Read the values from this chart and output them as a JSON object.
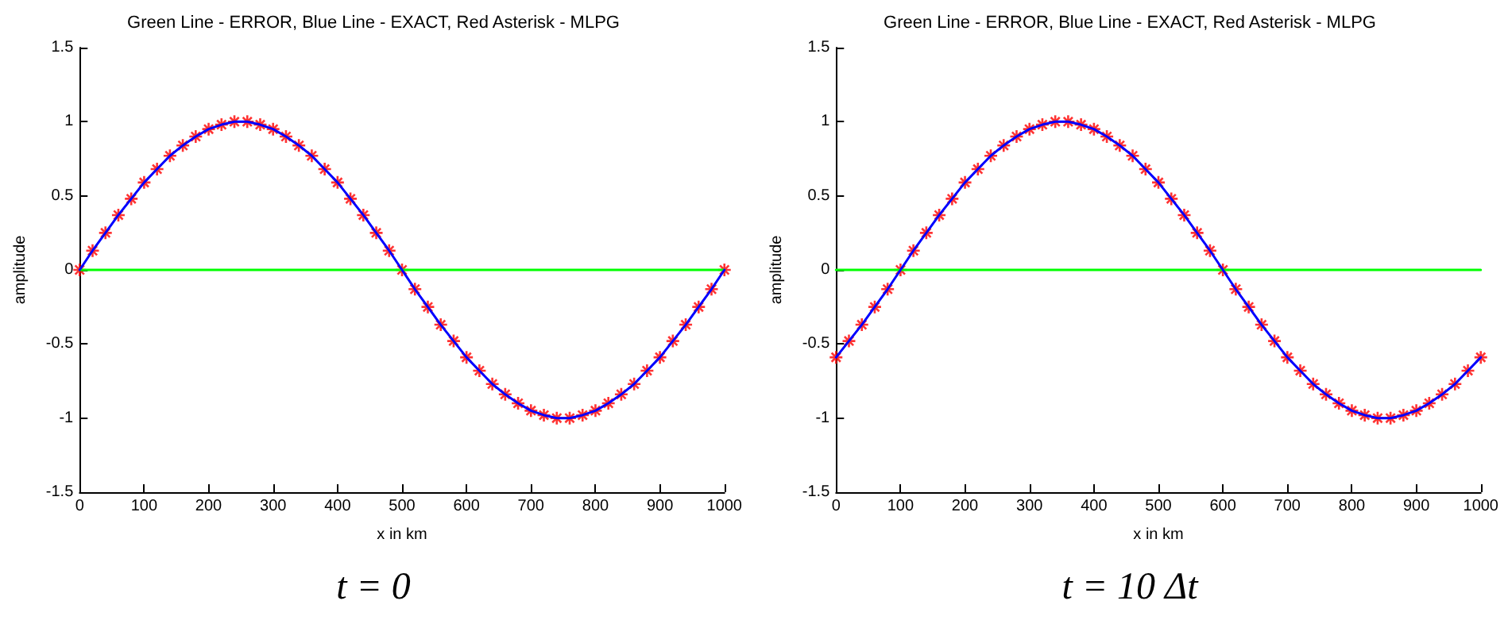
{
  "chart_data": [
    {
      "type": "line",
      "title": "Green Line - ERROR, Blue Line - EXACT, Red Asterisk - MLPG",
      "xlabel": "x in km",
      "ylabel": "amplitude",
      "annotations": [
        "t = 0"
      ],
      "xlim": [
        0,
        1000
      ],
      "xticks": [
        0,
        100,
        200,
        300,
        400,
        500,
        600,
        700,
        800,
        900,
        1000
      ],
      "ylim": [
        -1.5,
        1.5
      ],
      "yticks": [
        -1.5,
        -1,
        -0.5,
        0,
        0.5,
        1,
        1.5
      ],
      "grid": false,
      "x": [
        0,
        20,
        40,
        60,
        80,
        100,
        120,
        140,
        160,
        180,
        200,
        220,
        240,
        260,
        280,
        300,
        320,
        340,
        360,
        380,
        400,
        420,
        440,
        460,
        480,
        500,
        520,
        540,
        560,
        580,
        600,
        620,
        640,
        660,
        680,
        700,
        720,
        740,
        760,
        780,
        800,
        820,
        840,
        860,
        880,
        900,
        920,
        940,
        960,
        980,
        1000
      ],
      "series": [
        {
          "color": "#00ff00",
          "marker": "none",
          "values": [
            0,
            0,
            0,
            0,
            0,
            0,
            0,
            0,
            0,
            0,
            0,
            0,
            0,
            0,
            0,
            0,
            0,
            0,
            0,
            0,
            0,
            0,
            0,
            0,
            0,
            0,
            0,
            0,
            0,
            0,
            0,
            0,
            0,
            0,
            0,
            0,
            0,
            0,
            0,
            0,
            0,
            0,
            0,
            0,
            0,
            0,
            0,
            0,
            0,
            0,
            0
          ]
        },
        {
          "color": "#0000ff",
          "marker": "none",
          "values": [
            0,
            0.13,
            0.25,
            0.37,
            0.48,
            0.59,
            0.68,
            0.77,
            0.84,
            0.9,
            0.95,
            0.98,
            1,
            1,
            0.98,
            0.95,
            0.9,
            0.84,
            0.77,
            0.68,
            0.59,
            0.48,
            0.37,
            0.25,
            0.13,
            0,
            -0.13,
            -0.25,
            -0.37,
            -0.48,
            -0.59,
            -0.68,
            -0.77,
            -0.84,
            -0.9,
            -0.95,
            -0.98,
            -1,
            -1,
            -0.98,
            -0.95,
            -0.9,
            -0.84,
            -0.77,
            -0.68,
            -0.59,
            -0.48,
            -0.37,
            -0.25,
            -0.13,
            0
          ]
        },
        {
          "type": "scatter",
          "color": "#ff0000",
          "marker": "cross",
          "values": [
            0,
            0.13,
            0.25,
            0.37,
            0.48,
            0.59,
            0.68,
            0.77,
            0.84,
            0.9,
            0.95,
            0.98,
            1,
            1,
            0.98,
            0.95,
            0.9,
            0.84,
            0.77,
            0.68,
            0.59,
            0.48,
            0.37,
            0.25,
            0.13,
            0,
            -0.13,
            -0.25,
            -0.37,
            -0.48,
            -0.59,
            -0.68,
            -0.77,
            -0.84,
            -0.9,
            -0.95,
            -0.98,
            -1,
            -1,
            -0.98,
            -0.95,
            -0.9,
            -0.84,
            -0.77,
            -0.68,
            -0.59,
            -0.48,
            -0.37,
            -0.25,
            -0.13,
            0
          ]
        }
      ]
    },
    {
      "type": "line",
      "title": "Green Line - ERROR, Blue Line - EXACT, Red Asterisk - MLPG",
      "xlabel": "x in km",
      "ylabel": "amplitude",
      "annotations": [
        "t = 10 Δt"
      ],
      "xlim": [
        0,
        1000
      ],
      "xticks": [
        0,
        100,
        200,
        300,
        400,
        500,
        600,
        700,
        800,
        900,
        1000
      ],
      "ylim": [
        -1.5,
        1.5
      ],
      "yticks": [
        -1.5,
        -1,
        -0.5,
        0,
        0.5,
        1,
        1.5
      ],
      "grid": false,
      "x": [
        0,
        20,
        40,
        60,
        80,
        100,
        120,
        140,
        160,
        180,
        200,
        220,
        240,
        260,
        280,
        300,
        320,
        340,
        360,
        380,
        400,
        420,
        440,
        460,
        480,
        500,
        520,
        540,
        560,
        580,
        600,
        620,
        640,
        660,
        680,
        700,
        720,
        740,
        760,
        780,
        800,
        820,
        840,
        860,
        880,
        900,
        920,
        940,
        960,
        980,
        1000
      ],
      "series": [
        {
          "color": "#00ff00",
          "marker": "none",
          "values": [
            0,
            0,
            0,
            0,
            0,
            0,
            0,
            0,
            0,
            0,
            0,
            0,
            0,
            0,
            0,
            0,
            0,
            0,
            0,
            0,
            0,
            0,
            0,
            0,
            0,
            0,
            0,
            0,
            0,
            0,
            0,
            0,
            0,
            0,
            0,
            0,
            0,
            0,
            0,
            0,
            0,
            0,
            0,
            0,
            0,
            0,
            0,
            0,
            0,
            0,
            0
          ]
        },
        {
          "color": "#0000ff",
          "marker": "none",
          "values": [
            -0.59,
            -0.48,
            -0.37,
            -0.25,
            -0.13,
            0,
            0.13,
            0.25,
            0.37,
            0.48,
            0.59,
            0.68,
            0.77,
            0.84,
            0.9,
            0.95,
            0.98,
            1,
            1,
            0.98,
            0.95,
            0.9,
            0.84,
            0.77,
            0.68,
            0.59,
            0.48,
            0.37,
            0.25,
            0.13,
            0,
            -0.13,
            -0.25,
            -0.37,
            -0.48,
            -0.59,
            -0.68,
            -0.77,
            -0.84,
            -0.9,
            -0.95,
            -0.98,
            -1,
            -1,
            -0.98,
            -0.95,
            -0.9,
            -0.84,
            -0.77,
            -0.68,
            -0.59
          ]
        },
        {
          "type": "scatter",
          "color": "#ff0000",
          "marker": "cross",
          "values": [
            -0.59,
            -0.48,
            -0.37,
            -0.25,
            -0.13,
            0,
            0.13,
            0.25,
            0.37,
            0.48,
            0.59,
            0.68,
            0.77,
            0.84,
            0.9,
            0.95,
            0.98,
            1,
            1,
            0.98,
            0.95,
            0.9,
            0.84,
            0.77,
            0.68,
            0.59,
            0.48,
            0.37,
            0.25,
            0.13,
            0,
            -0.13,
            -0.25,
            -0.37,
            -0.48,
            -0.59,
            -0.68,
            -0.77,
            -0.84,
            -0.9,
            -0.95,
            -0.98,
            -1,
            -1,
            -0.98,
            -0.95,
            -0.9,
            -0.84,
            -0.77,
            -0.68,
            -0.59
          ]
        }
      ]
    }
  ]
}
